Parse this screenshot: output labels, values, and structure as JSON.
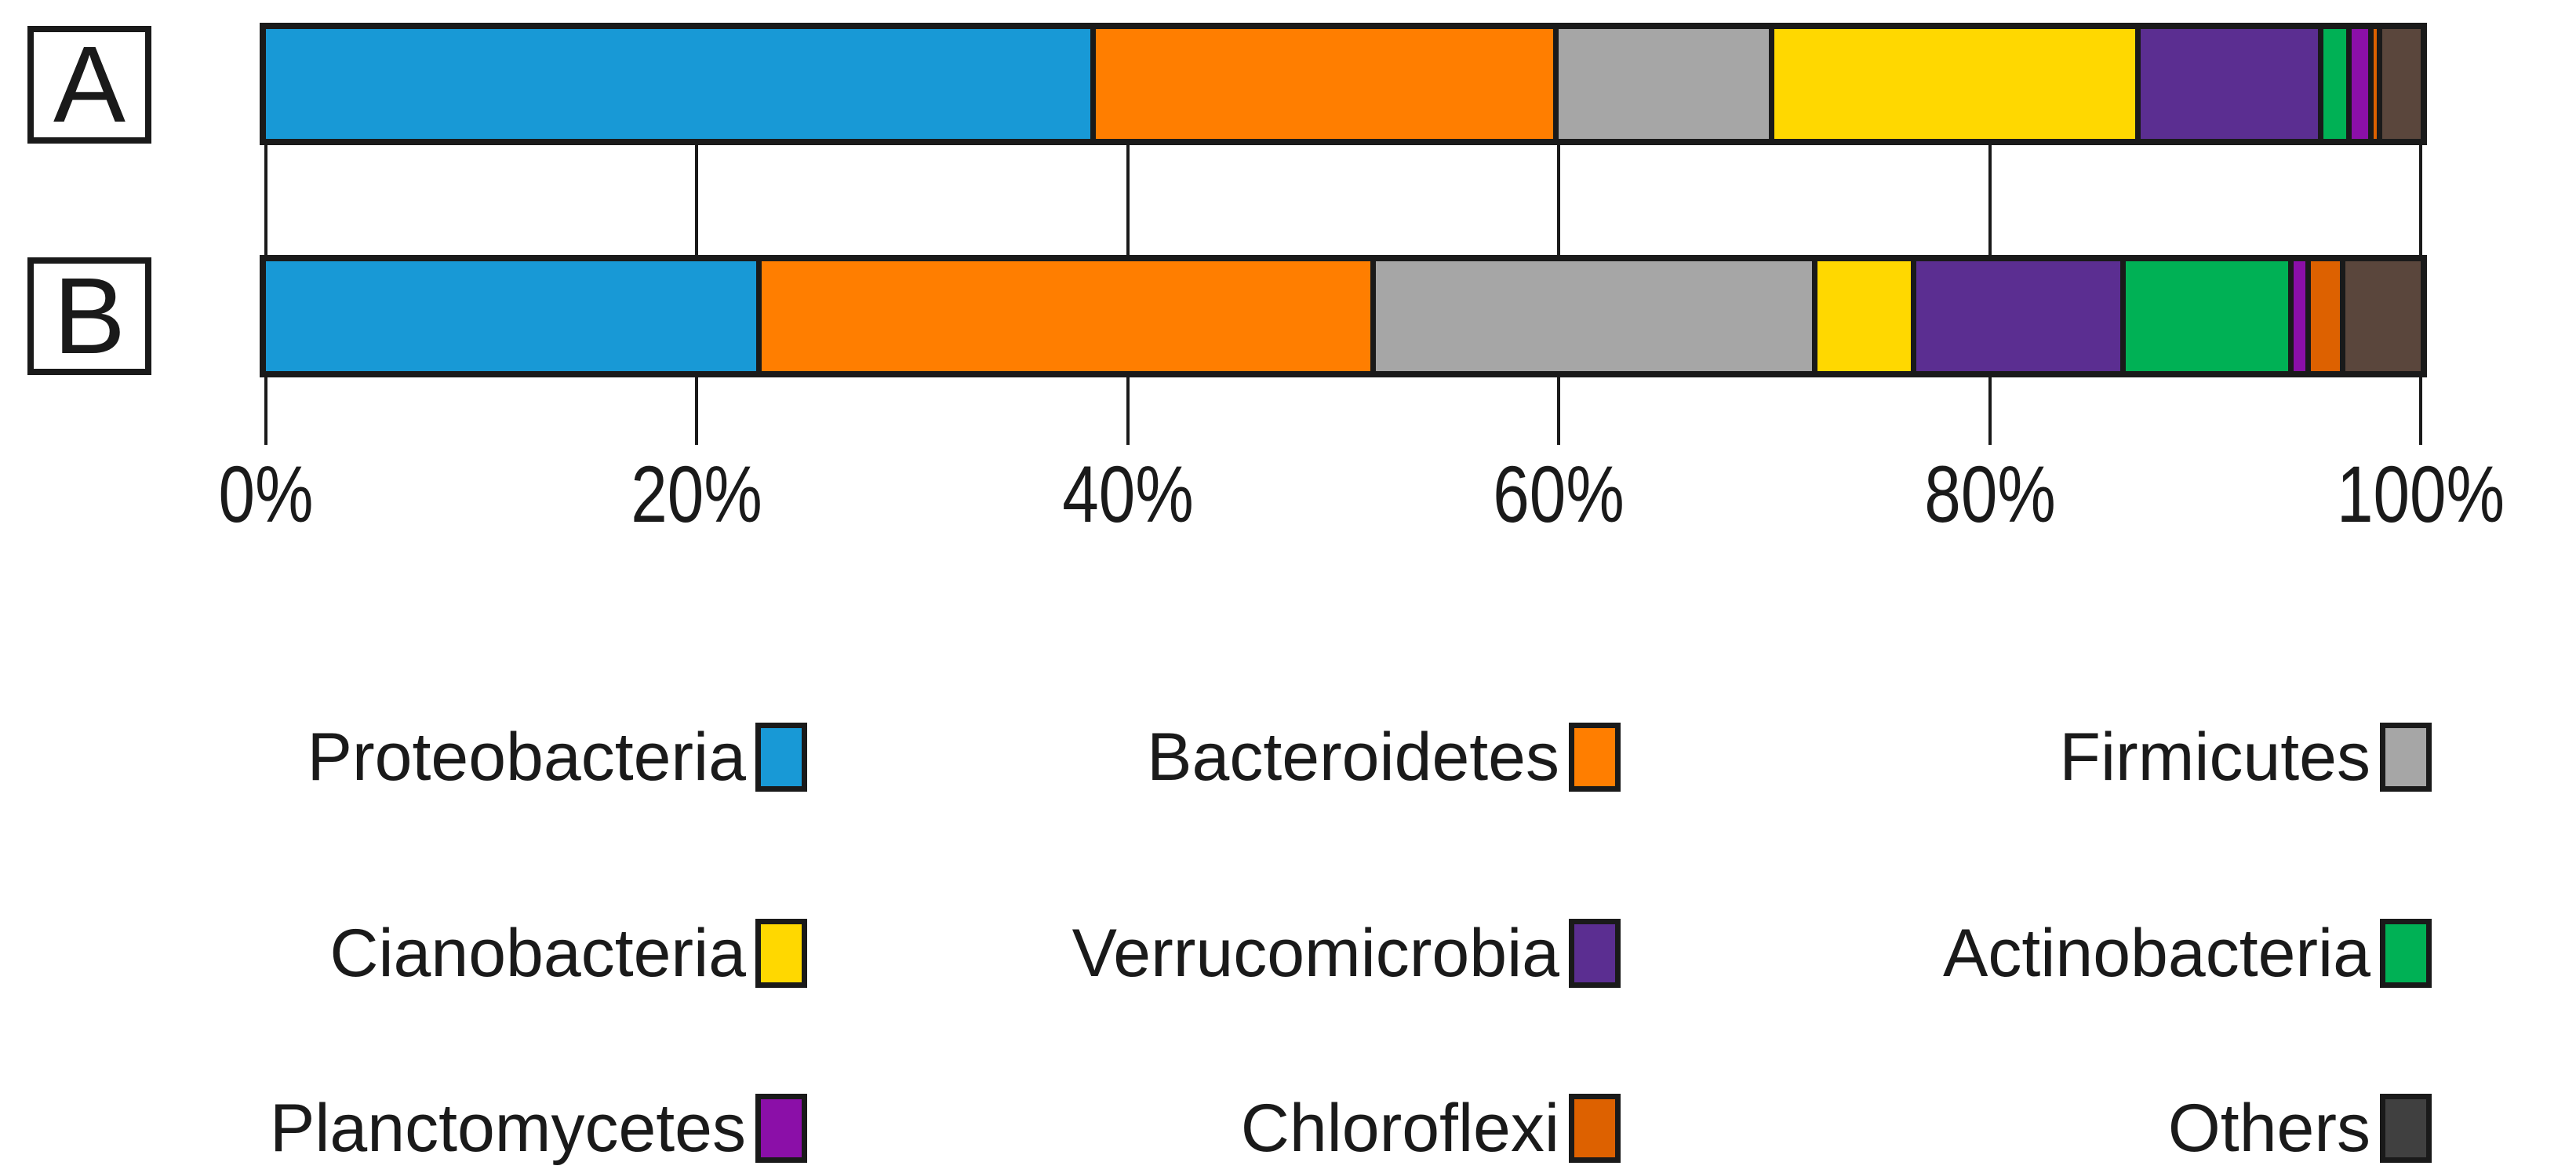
{
  "chart_data": {
    "type": "bar",
    "orientation": "horizontal",
    "stacked": true,
    "value_unit": "percent",
    "categories": [
      "A",
      "B"
    ],
    "x_axis": {
      "tick_labels": [
        "0%",
        "20%",
        "40%",
        "60%",
        "80%",
        "100%"
      ],
      "tick_values": [
        0,
        20,
        40,
        60,
        80,
        100
      ],
      "range": [
        0,
        100
      ],
      "grid": false
    },
    "series": [
      {
        "name": "Proteobacteria",
        "color": "#1899D6",
        "values": [
          38.5,
          23.0
        ]
      },
      {
        "name": "Bacteroidetes",
        "color": "#FF7E00",
        "values": [
          21.5,
          28.5
        ]
      },
      {
        "name": "Firmicutes",
        "color": "#A6A6A6",
        "values": [
          10.0,
          20.5
        ]
      },
      {
        "name": "Cianobacteria",
        "color": "#FFD800",
        "values": [
          17.0,
          4.6
        ]
      },
      {
        "name": "Verrucomicrobia",
        "color": "#5B2E91",
        "values": [
          8.5,
          9.7
        ]
      },
      {
        "name": "Actinobacteria",
        "color": "#00B155",
        "values": [
          1.3,
          7.8
        ]
      },
      {
        "name": "Planctomycetes",
        "color": "#8B0FA8",
        "values": [
          1.0,
          0.8
        ]
      },
      {
        "name": "Chloroflexi",
        "color": "#DD6100",
        "values": [
          0.4,
          1.6
        ]
      },
      {
        "name": "Others",
        "color": "#5A463C",
        "legend_color": "#404040",
        "values": [
          1.8,
          3.5
        ]
      }
    ],
    "legend": {
      "position": "bottom",
      "columns": 3,
      "swatch_side": "right"
    }
  }
}
